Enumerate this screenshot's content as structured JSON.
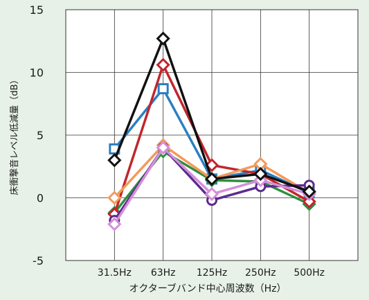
{
  "chart_data": {
    "type": "line",
    "title": "",
    "xlabel": "オクターブバンド中心周波数（Hz）",
    "ylabel": "床衝撃音レベル低減量（dB）",
    "categories": [
      "31.5Hz",
      "63Hz",
      "125Hz",
      "250Hz",
      "500Hz"
    ],
    "ylim": [
      -5,
      15
    ],
    "yticks": [
      -5,
      0,
      5,
      10,
      15
    ],
    "grid": true,
    "legend": "none",
    "series": [
      {
        "marker": "square",
        "color": "#2a7fc1",
        "values": [
          3.9,
          8.7,
          1.5,
          2.2,
          0.4
        ]
      },
      {
        "marker": "diamond",
        "color": "#2f8f3e",
        "values": [
          -1.2,
          3.7,
          1.4,
          1.3,
          -0.5
        ]
      },
      {
        "marker": "diamond",
        "color": "#c0262d",
        "values": [
          -1.3,
          10.6,
          2.6,
          1.9,
          -0.3
        ]
      },
      {
        "marker": "diamond",
        "color": "#f39a5a",
        "values": [
          0.0,
          4.2,
          1.5,
          2.7,
          0.4
        ]
      },
      {
        "marker": "circle",
        "color": "#5b2c8e",
        "values": [
          -1.8,
          4.0,
          -0.2,
          0.9,
          1.0
        ]
      },
      {
        "marker": "diamond",
        "color": "#d58fd8",
        "values": [
          -2.1,
          4.0,
          0.3,
          1.4,
          0.3
        ]
      },
      {
        "marker": "diamond",
        "color": "#111111",
        "values": [
          3.0,
          12.7,
          1.5,
          1.9,
          0.5
        ]
      }
    ]
  }
}
